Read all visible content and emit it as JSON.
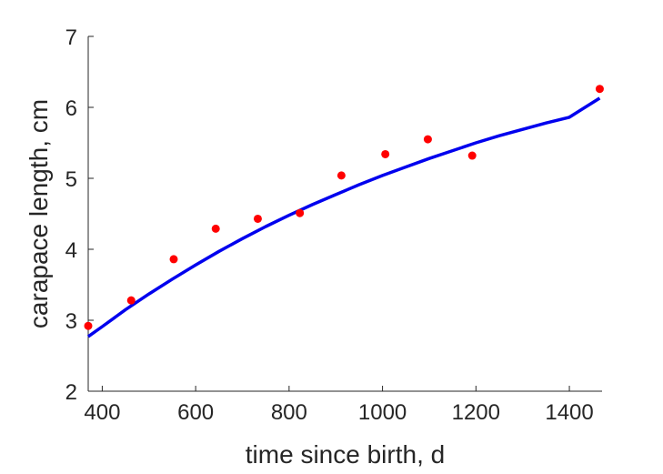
{
  "chart_data": {
    "type": "scatter",
    "xlabel": "time since birth, d",
    "ylabel": "carapace length, cm",
    "xlim": [
      370,
      1470
    ],
    "ylim": [
      2,
      7
    ],
    "x_ticks": [
      400,
      600,
      800,
      1000,
      1200,
      1400
    ],
    "y_ticks": [
      2,
      3,
      4,
      5,
      6,
      7
    ],
    "grid": false,
    "series": [
      {
        "type": "scatter",
        "color": "#ff0000",
        "x": [
          370,
          462,
          553,
          643,
          733,
          823,
          912,
          1006,
          1097,
          1192,
          1465
        ],
        "y": [
          2.92,
          3.28,
          3.86,
          4.29,
          4.43,
          4.51,
          5.04,
          5.34,
          5.55,
          5.32,
          6.26
        ]
      },
      {
        "type": "line",
        "color": "#0000ee",
        "x": [
          370,
          400,
          450,
          500,
          550,
          600,
          650,
          700,
          750,
          800,
          850,
          900,
          950,
          1000,
          1050,
          1100,
          1150,
          1200,
          1250,
          1300,
          1350,
          1400,
          1465
        ],
        "y": [
          2.77,
          2.91,
          3.15,
          3.37,
          3.58,
          3.78,
          3.97,
          4.15,
          4.32,
          4.48,
          4.63,
          4.77,
          4.91,
          5.04,
          5.16,
          5.28,
          5.39,
          5.5,
          5.6,
          5.69,
          5.78,
          5.86,
          6.13
        ]
      }
    ]
  }
}
